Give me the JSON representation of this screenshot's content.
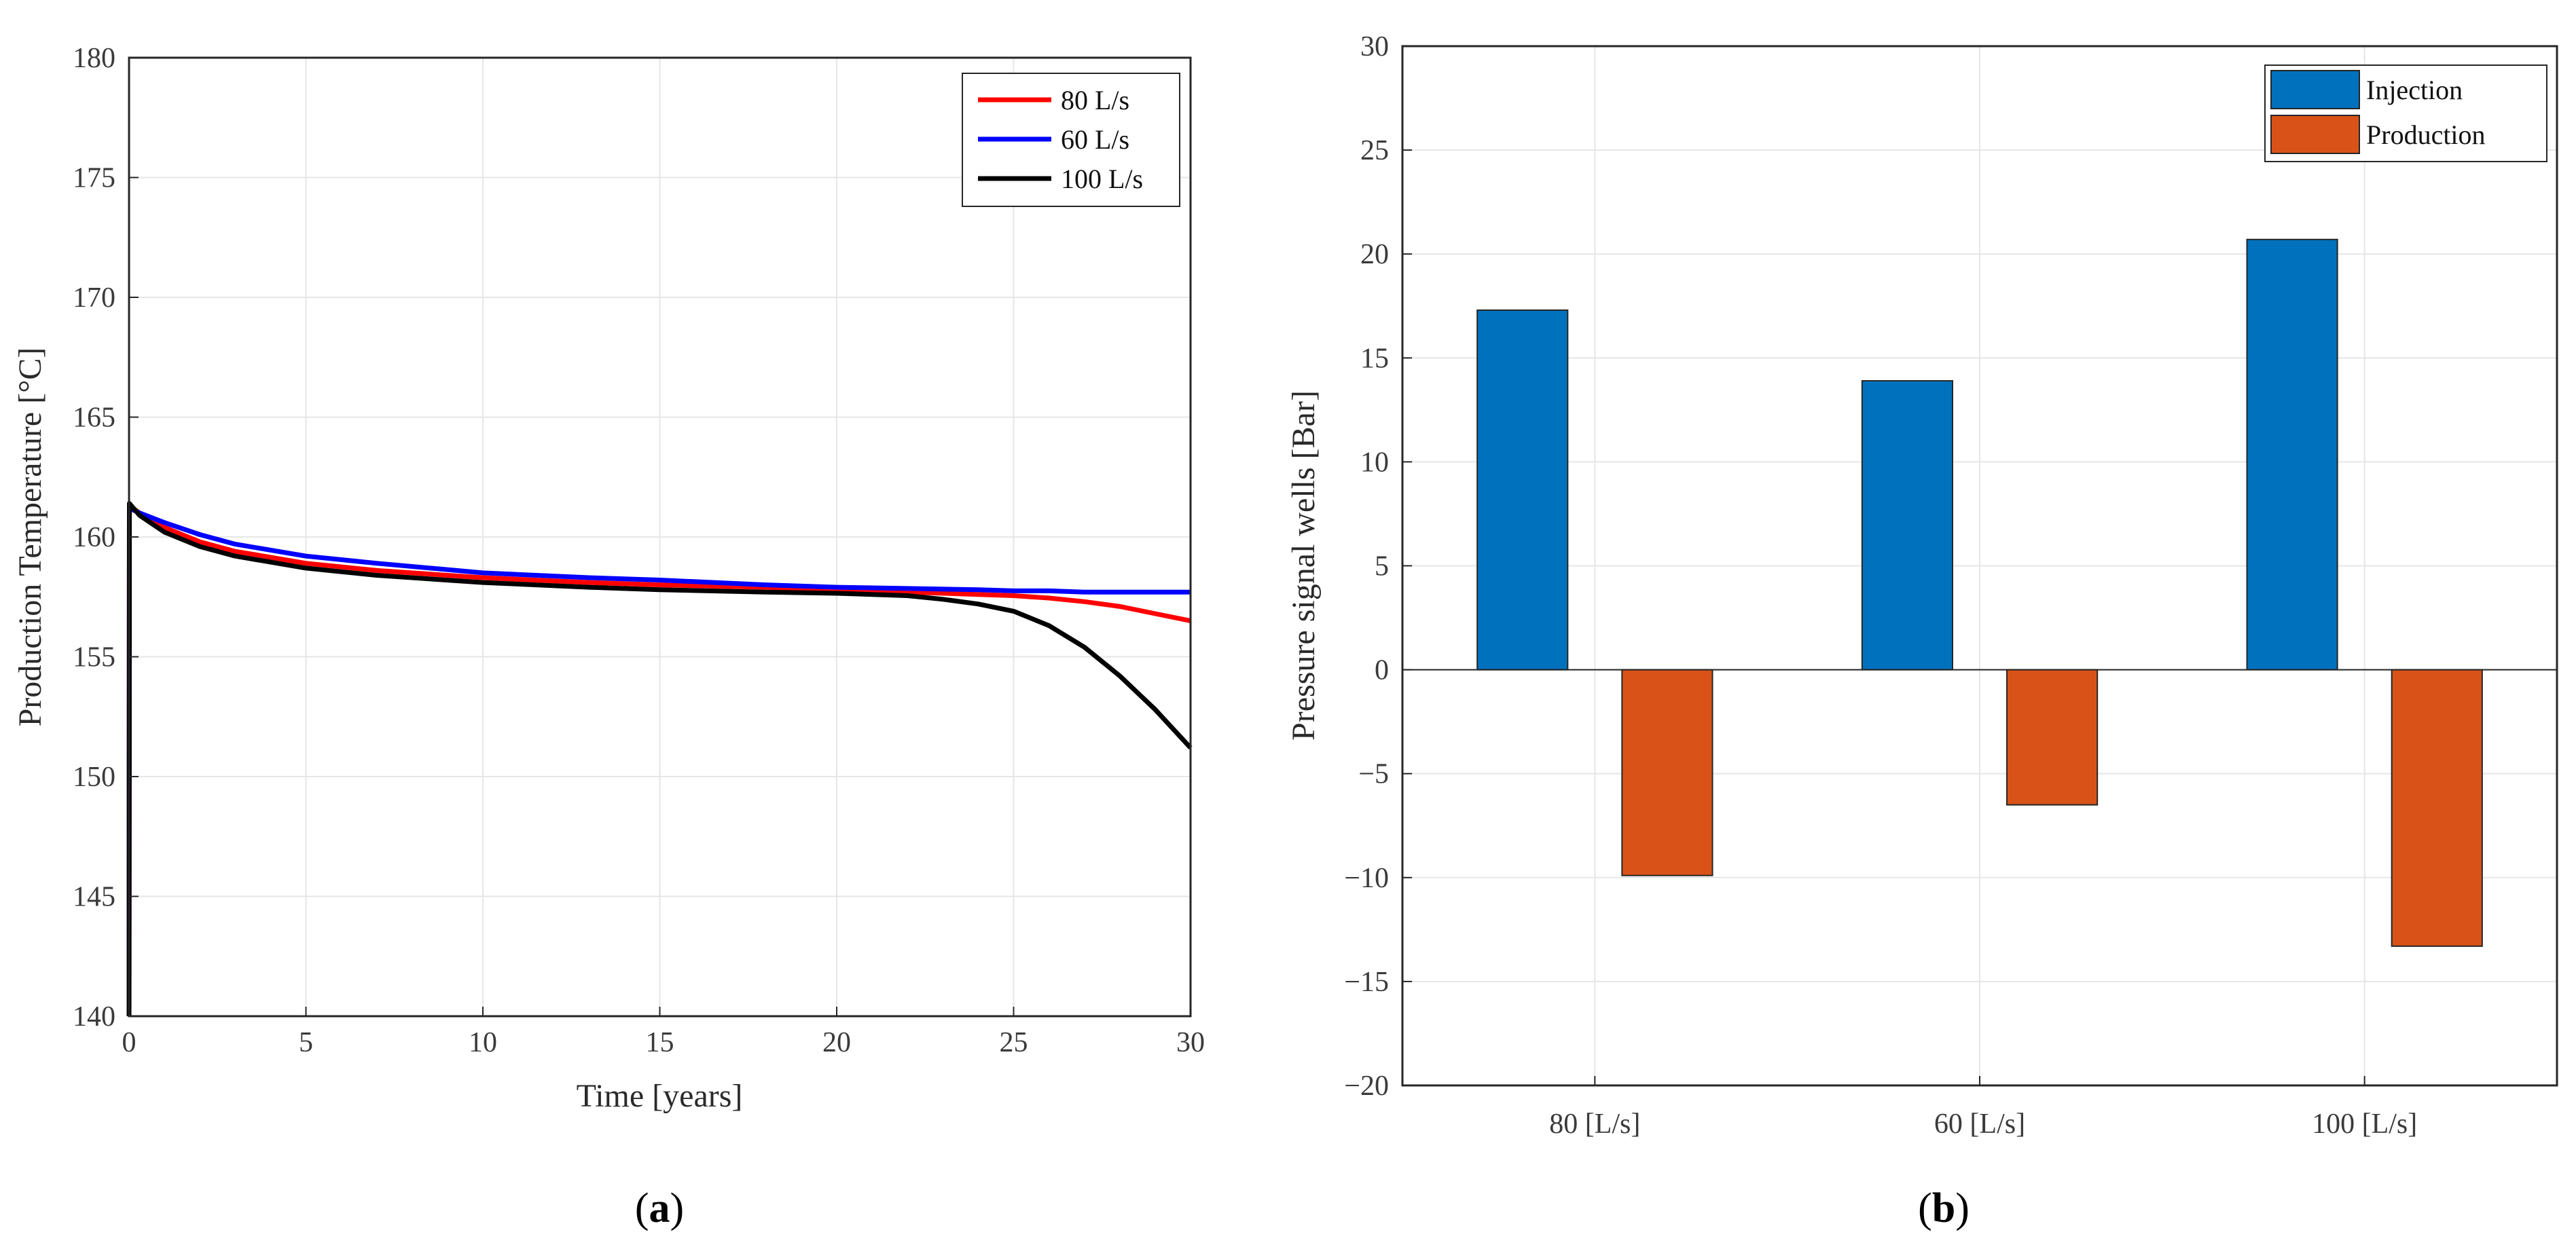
{
  "chart_data": [
    {
      "type": "line",
      "panel_label": "(a)",
      "panel_letter": "a",
      "xlabel": "Time [years]",
      "ylabel": "Production Temperature [°C]",
      "xlim": [
        0,
        30
      ],
      "ylim": [
        140,
        180
      ],
      "xticks": [
        0,
        5,
        10,
        15,
        20,
        25,
        30
      ],
      "yticks": [
        140,
        145,
        150,
        155,
        160,
        165,
        170,
        175,
        180
      ],
      "grid": true,
      "legend_position": "top-right",
      "series": [
        {
          "name": "80 L/s",
          "color": "#ff0000",
          "x": [
            0,
            0.01,
            0.3,
            1,
            2,
            3,
            5,
            7,
            10,
            13,
            15,
            18,
            20,
            22,
            24,
            25,
            26,
            27,
            28,
            29,
            30
          ],
          "y": [
            140,
            161.3,
            161.0,
            160.4,
            159.8,
            159.4,
            158.9,
            158.6,
            158.3,
            158.1,
            158.0,
            157.9,
            157.8,
            157.7,
            157.6,
            157.55,
            157.45,
            157.3,
            157.1,
            156.8,
            156.5
          ]
        },
        {
          "name": "60 L/s",
          "color": "#0000ff",
          "x": [
            0,
            0.01,
            0.3,
            1,
            2,
            3,
            5,
            7,
            10,
            13,
            15,
            18,
            20,
            22,
            24,
            25,
            26,
            27,
            28,
            29,
            30
          ],
          "y": [
            140,
            161.2,
            161.0,
            160.6,
            160.1,
            159.7,
            159.2,
            158.9,
            158.5,
            158.3,
            158.2,
            158.0,
            157.9,
            157.85,
            157.8,
            157.75,
            157.75,
            157.7,
            157.7,
            157.7,
            157.7
          ]
        },
        {
          "name": "100 L/s",
          "color": "#000000",
          "x": [
            0,
            0.01,
            0.3,
            1,
            2,
            3,
            5,
            7,
            10,
            13,
            15,
            18,
            20,
            22,
            23,
            24,
            25,
            26,
            27,
            28,
            29,
            30
          ],
          "y": [
            140,
            161.4,
            160.9,
            160.2,
            159.6,
            159.2,
            158.7,
            158.4,
            158.1,
            157.9,
            157.8,
            157.7,
            157.65,
            157.55,
            157.4,
            157.2,
            156.9,
            156.3,
            155.4,
            154.2,
            152.8,
            151.2
          ]
        }
      ]
    },
    {
      "type": "bar",
      "panel_label": "(b)",
      "panel_letter": "b",
      "xlabel": "",
      "ylabel": "Pressure signal wells [Bar]",
      "ylim": [
        -20,
        30
      ],
      "yticks": [
        -20,
        -15,
        -10,
        -5,
        0,
        5,
        10,
        15,
        20,
        25,
        30
      ],
      "ytick_labels": [
        "−20",
        "−15",
        "−10",
        "−5",
        "0",
        "5",
        "10",
        "15",
        "20",
        "25",
        "30"
      ],
      "grid": true,
      "legend_position": "top-right",
      "categories": [
        "80 [L/s]",
        "60 [L/s]",
        "100 [L/s]"
      ],
      "series": [
        {
          "name": "Injection",
          "color": "#0072bd",
          "values": [
            17.3,
            13.9,
            20.7
          ]
        },
        {
          "name": "Production",
          "color": "#d95319",
          "values": [
            -9.9,
            -6.5,
            -13.3
          ]
        }
      ]
    }
  ]
}
